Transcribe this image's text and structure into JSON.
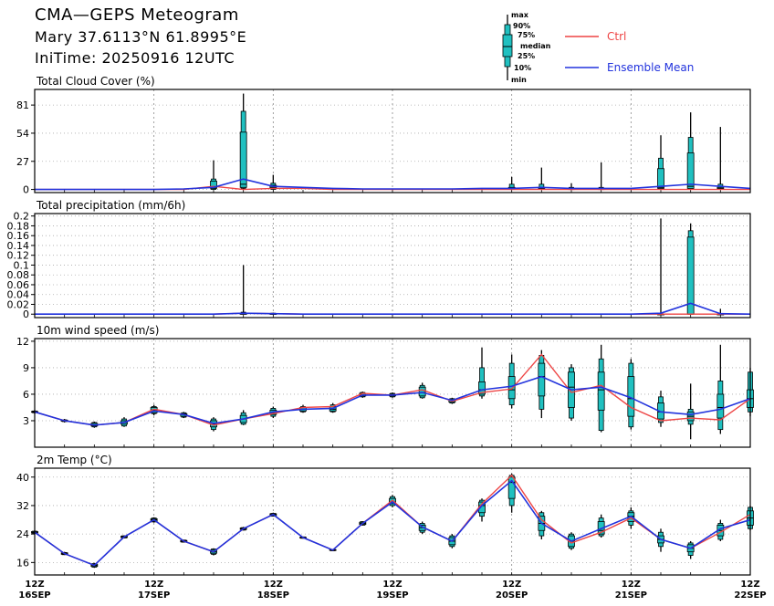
{
  "header": {
    "title": "CMA—GEPS Meteogram",
    "location": "Mary 37.6113°N 61.8995°E",
    "init_time": "IniTime: 20250916 12UTC"
  },
  "legend": {
    "ctrl_label": "Ctrl",
    "mean_label": "Ensemble Mean",
    "ctrl_color": "#ee4444",
    "mean_color": "#2233dd",
    "box_color": "#20c0c0",
    "box_key": [
      "max",
      "90%",
      "75%",
      "median",
      "25%",
      "10%",
      "min"
    ]
  },
  "chart_data": [
    {
      "type": "box",
      "title": "Total Cloud Cover (%)",
      "ylim": [
        -3,
        96
      ],
      "yticks": [
        0,
        27,
        54,
        81
      ],
      "x_hours": [
        0,
        6,
        12,
        18,
        24,
        30,
        36,
        42,
        48,
        54,
        60,
        66,
        72,
        78,
        84,
        90,
        96,
        102,
        108,
        114,
        120,
        126,
        132,
        138,
        144
      ],
      "ctrl": [
        0,
        0,
        0,
        0,
        0,
        0,
        3,
        0,
        1,
        1,
        0,
        0,
        0,
        0,
        0,
        0,
        0,
        0,
        0,
        0,
        0,
        0,
        0,
        0,
        0
      ],
      "mean": [
        0,
        0,
        0,
        0,
        0,
        0.5,
        2,
        10,
        3,
        2,
        1,
        0.5,
        0.5,
        0.5,
        0.5,
        1,
        1,
        2,
        1,
        1,
        1,
        3,
        5,
        3,
        1
      ],
      "boxes": [
        {
          "x": 36,
          "min": 0,
          "p10": 0,
          "p25": 1,
          "median": 2,
          "p75": 8,
          "p90": 10,
          "max": 28
        },
        {
          "x": 42,
          "min": 0,
          "p10": 1,
          "p25": 2,
          "median": 5,
          "p75": 55,
          "p90": 75,
          "max": 92
        },
        {
          "x": 48,
          "min": 0,
          "p10": 0,
          "p25": 1,
          "median": 2,
          "p75": 4,
          "p90": 6,
          "max": 14
        },
        {
          "x": 96,
          "min": 0,
          "p10": 0,
          "p25": 0,
          "median": 1,
          "p75": 2,
          "p90": 5,
          "max": 12
        },
        {
          "x": 102,
          "min": 0,
          "p10": 0,
          "p25": 1,
          "median": 1,
          "p75": 2,
          "p90": 5,
          "max": 21
        },
        {
          "x": 108,
          "min": 0,
          "p10": 0,
          "p25": 0,
          "median": 0,
          "p75": 1,
          "p90": 2,
          "max": 6
        },
        {
          "x": 114,
          "min": 0,
          "p10": 0,
          "p25": 0,
          "median": 0,
          "p75": 1,
          "p90": 2,
          "max": 26
        },
        {
          "x": 126,
          "min": 0,
          "p10": 0,
          "p25": 1,
          "median": 2,
          "p75": 20,
          "p90": 30,
          "max": 52
        },
        {
          "x": 132,
          "min": 0,
          "p10": 0,
          "p25": 1,
          "median": 3,
          "p75": 35,
          "p90": 50,
          "max": 74
        },
        {
          "x": 138,
          "min": 0,
          "p10": 0,
          "p25": 0,
          "median": 1,
          "p75": 2,
          "p90": 5,
          "max": 60
        }
      ]
    },
    {
      "type": "box",
      "title": "Total precipitation (mm/6h)",
      "ylim": [
        -0.007,
        0.205
      ],
      "yticks": [
        0,
        0.02,
        0.04,
        0.06,
        0.08,
        0.1,
        0.12,
        0.14,
        0.16,
        0.18,
        0.2
      ],
      "x_hours": [
        0,
        6,
        12,
        18,
        24,
        30,
        36,
        42,
        48,
        54,
        60,
        66,
        72,
        78,
        84,
        90,
        96,
        102,
        108,
        114,
        120,
        126,
        132,
        138,
        144
      ],
      "ctrl": [
        0,
        0,
        0,
        0,
        0,
        0,
        0,
        0.002,
        0.001,
        0,
        0,
        0,
        0,
        0,
        0,
        0,
        0,
        0,
        0,
        0,
        0,
        0,
        0,
        0,
        0
      ],
      "mean": [
        0,
        0,
        0,
        0,
        0,
        0,
        0,
        0.002,
        0.001,
        0,
        0,
        0,
        0,
        0,
        0,
        0,
        0,
        0,
        0,
        0,
        0,
        0.002,
        0.022,
        0.001,
        0
      ],
      "boxes": [
        {
          "x": 42,
          "min": 0,
          "p10": 0,
          "p25": 0,
          "median": 0,
          "p75": 0.002,
          "p90": 0.004,
          "max": 0.1
        },
        {
          "x": 48,
          "min": 0,
          "p10": 0,
          "p25": 0,
          "median": 0,
          "p75": 0.001,
          "p90": 0.002,
          "max": 0.003
        },
        {
          "x": 126,
          "min": 0,
          "p10": 0,
          "p25": 0,
          "median": 0,
          "p75": 0,
          "p90": 0.001,
          "max": 0.195
        },
        {
          "x": 132,
          "min": 0,
          "p10": 0,
          "p25": 0,
          "median": 0,
          "p75": 0.157,
          "p90": 0.17,
          "max": 0.185
        },
        {
          "x": 138,
          "min": 0,
          "p10": 0,
          "p25": 0,
          "median": 0,
          "p75": 0,
          "p90": 0.001,
          "max": 0.011
        }
      ]
    },
    {
      "type": "box",
      "title": "10m wind speed (m/s)",
      "ylim": [
        0,
        12.3
      ],
      "yticks": [
        3,
        6,
        9,
        12
      ],
      "x_hours": [
        0,
        6,
        12,
        18,
        24,
        30,
        36,
        42,
        48,
        54,
        60,
        66,
        72,
        78,
        84,
        90,
        96,
        102,
        108,
        114,
        120,
        126,
        132,
        138,
        144
      ],
      "ctrl": [
        4.0,
        3.0,
        2.5,
        2.8,
        4.3,
        3.7,
        2.5,
        3.2,
        3.8,
        4.5,
        4.6,
        6.1,
        5.9,
        6.5,
        5.2,
        6.2,
        6.6,
        10.5,
        6.2,
        7.0,
        4.5,
        3.0,
        3.3,
        3.1,
        5.5
      ],
      "mean": [
        4.0,
        3.0,
        2.5,
        2.8,
        4.1,
        3.7,
        2.7,
        3.2,
        4.0,
        4.3,
        4.4,
        5.9,
        5.9,
        6.2,
        5.3,
        6.5,
        6.9,
        8.0,
        6.5,
        6.8,
        5.6,
        4.0,
        3.7,
        4.3,
        5.5
      ],
      "boxes": [
        {
          "x": 0,
          "min": 3.8,
          "p10": 3.9,
          "p25": 3.95,
          "median": 4.0,
          "p75": 4.05,
          "p90": 4.1,
          "max": 4.2
        },
        {
          "x": 6,
          "min": 2.8,
          "p10": 2.9,
          "p25": 2.95,
          "median": 3.0,
          "p75": 3.05,
          "p90": 3.1,
          "max": 3.2
        },
        {
          "x": 12,
          "min": 2.2,
          "p10": 2.3,
          "p25": 2.4,
          "median": 2.5,
          "p75": 2.7,
          "p90": 2.8,
          "max": 2.9
        },
        {
          "x": 18,
          "min": 2.3,
          "p10": 2.4,
          "p25": 2.6,
          "median": 2.8,
          "p75": 3.0,
          "p90": 3.2,
          "max": 3.4
        },
        {
          "x": 24,
          "min": 3.6,
          "p10": 3.8,
          "p25": 3.9,
          "median": 4.2,
          "p75": 4.5,
          "p90": 4.6,
          "max": 4.8
        },
        {
          "x": 30,
          "min": 3.3,
          "p10": 3.4,
          "p25": 3.5,
          "median": 3.7,
          "p75": 3.8,
          "p90": 3.9,
          "max": 4.0
        },
        {
          "x": 36,
          "min": 1.8,
          "p10": 2.0,
          "p25": 2.3,
          "median": 2.6,
          "p75": 3.0,
          "p90": 3.2,
          "max": 3.4
        },
        {
          "x": 42,
          "min": 2.5,
          "p10": 2.6,
          "p25": 2.8,
          "median": 3.2,
          "p75": 3.6,
          "p90": 3.9,
          "max": 4.2
        },
        {
          "x": 48,
          "min": 3.3,
          "p10": 3.5,
          "p25": 3.7,
          "median": 3.9,
          "p75": 4.2,
          "p90": 4.4,
          "max": 4.6
        },
        {
          "x": 54,
          "min": 3.9,
          "p10": 4.0,
          "p25": 4.1,
          "median": 4.3,
          "p75": 4.5,
          "p90": 4.6,
          "max": 4.8
        },
        {
          "x": 60,
          "min": 3.9,
          "p10": 4.0,
          "p25": 4.1,
          "median": 4.3,
          "p75": 4.6,
          "p90": 4.8,
          "max": 5.0
        },
        {
          "x": 66,
          "min": 5.6,
          "p10": 5.7,
          "p25": 5.8,
          "median": 5.9,
          "p75": 6.1,
          "p90": 6.2,
          "max": 6.3
        },
        {
          "x": 72,
          "min": 5.6,
          "p10": 5.7,
          "p25": 5.8,
          "median": 5.9,
          "p75": 6.0,
          "p90": 6.1,
          "max": 6.2
        },
        {
          "x": 78,
          "min": 5.5,
          "p10": 5.6,
          "p25": 5.8,
          "median": 6.2,
          "p75": 6.8,
          "p90": 7.0,
          "max": 7.3
        },
        {
          "x": 84,
          "min": 4.9,
          "p10": 5.0,
          "p25": 5.1,
          "median": 5.3,
          "p75": 5.4,
          "p90": 5.5,
          "max": 5.6
        },
        {
          "x": 90,
          "min": 5.5,
          "p10": 5.8,
          "p25": 6.0,
          "median": 6.5,
          "p75": 7.4,
          "p90": 9.0,
          "max": 11.3
        },
        {
          "x": 96,
          "min": 4.4,
          "p10": 4.8,
          "p25": 5.5,
          "median": 6.5,
          "p75": 8.0,
          "p90": 9.5,
          "max": 10.5
        },
        {
          "x": 102,
          "min": 3.3,
          "p10": 4.3,
          "p25": 5.8,
          "median": 8.0,
          "p75": 9.5,
          "p90": 10.4,
          "max": 11.0
        },
        {
          "x": 108,
          "min": 3.0,
          "p10": 3.3,
          "p25": 4.5,
          "median": 6.8,
          "p75": 8.5,
          "p90": 9.0,
          "max": 9.4
        },
        {
          "x": 114,
          "min": 1.7,
          "p10": 1.9,
          "p25": 4.2,
          "median": 6.5,
          "p75": 8.5,
          "p90": 10.0,
          "max": 11.6
        },
        {
          "x": 120,
          "min": 2.0,
          "p10": 2.3,
          "p25": 3.5,
          "median": 5.5,
          "p75": 8.0,
          "p90": 9.5,
          "max": 10.0
        },
        {
          "x": 126,
          "min": 2.3,
          "p10": 2.8,
          "p25": 3.2,
          "median": 4.0,
          "p75": 5.0,
          "p90": 5.7,
          "max": 6.4
        },
        {
          "x": 132,
          "min": 0.9,
          "p10": 2.6,
          "p25": 3.0,
          "median": 3.5,
          "p75": 4.0,
          "p90": 4.3,
          "max": 7.2
        },
        {
          "x": 138,
          "min": 1.5,
          "p10": 2.0,
          "p25": 3.3,
          "median": 4.5,
          "p75": 6.0,
          "p90": 7.5,
          "max": 11.6
        },
        {
          "x": 144,
          "min": 3.5,
          "p10": 4.0,
          "p25": 4.5,
          "median": 5.5,
          "p75": 6.5,
          "p90": 8.5,
          "max": 9.0
        }
      ]
    },
    {
      "type": "box",
      "title": "2m Temp (°C)",
      "ylim": [
        12.5,
        42.5
      ],
      "yticks": [
        16,
        24,
        32,
        40
      ],
      "x_hours": [
        0,
        6,
        12,
        18,
        24,
        30,
        36,
        42,
        48,
        54,
        60,
        66,
        72,
        78,
        84,
        90,
        96,
        102,
        108,
        114,
        120,
        126,
        132,
        138,
        144
      ],
      "xticks": [
        {
          "hour": 0,
          "top": "12Z",
          "bottom": "16SEP"
        },
        {
          "hour": 24,
          "top": "12Z",
          "bottom": "17SEP"
        },
        {
          "hour": 48,
          "top": "12Z",
          "bottom": "18SEP"
        },
        {
          "hour": 72,
          "top": "12Z",
          "bottom": "19SEP"
        },
        {
          "hour": 96,
          "top": "12Z",
          "bottom": "20SEP"
        },
        {
          "hour": 120,
          "top": "12Z",
          "bottom": "21SEP"
        },
        {
          "hour": 144,
          "top": "12Z",
          "bottom": "22SEP"
        }
      ],
      "ctrl": [
        24.5,
        18.5,
        15.2,
        23.2,
        28.0,
        22.0,
        19.0,
        25.5,
        29.5,
        23.0,
        19.5,
        27.0,
        33.5,
        26.0,
        22.0,
        32.5,
        40.5,
        28.0,
        21.5,
        24.5,
        28.5,
        22.5,
        20.0,
        24.5,
        29.5
      ],
      "mean": [
        24.5,
        18.5,
        15.2,
        23.2,
        28.0,
        22.0,
        19.0,
        25.5,
        29.5,
        23.0,
        19.5,
        27.0,
        33.0,
        26.0,
        22.0,
        32.0,
        39.0,
        27.0,
        22.0,
        25.5,
        29.0,
        22.5,
        20.0,
        25.5,
        28.0
      ],
      "boxes": [
        {
          "x": 0,
          "min": 24.1,
          "p10": 24.2,
          "p25": 24.3,
          "median": 24.5,
          "p75": 24.7,
          "p90": 24.8,
          "max": 25.0
        },
        {
          "x": 6,
          "min": 18.1,
          "p10": 18.2,
          "p25": 18.3,
          "median": 18.5,
          "p75": 18.7,
          "p90": 18.8,
          "max": 19.0
        },
        {
          "x": 12,
          "min": 14.5,
          "p10": 14.7,
          "p25": 14.9,
          "median": 15.2,
          "p75": 15.5,
          "p90": 15.7,
          "max": 15.9
        },
        {
          "x": 18,
          "min": 22.8,
          "p10": 22.9,
          "p25": 23.0,
          "median": 23.2,
          "p75": 23.4,
          "p90": 23.5,
          "max": 23.6
        },
        {
          "x": 24,
          "min": 27.2,
          "p10": 27.4,
          "p25": 27.6,
          "median": 28.0,
          "p75": 28.3,
          "p90": 28.5,
          "max": 28.7
        },
        {
          "x": 30,
          "min": 21.6,
          "p10": 21.7,
          "p25": 21.8,
          "median": 22.0,
          "p75": 22.2,
          "p90": 22.3,
          "max": 22.4
        },
        {
          "x": 36,
          "min": 18.0,
          "p10": 18.3,
          "p25": 18.6,
          "median": 19.0,
          "p75": 19.5,
          "p90": 19.8,
          "max": 20.0
        },
        {
          "x": 42,
          "min": 25.0,
          "p10": 25.1,
          "p25": 25.3,
          "median": 25.5,
          "p75": 25.7,
          "p90": 25.8,
          "max": 26.0
        },
        {
          "x": 48,
          "min": 28.9,
          "p10": 29.0,
          "p25": 29.2,
          "median": 29.5,
          "p75": 29.7,
          "p90": 29.8,
          "max": 30.0
        },
        {
          "x": 54,
          "min": 22.7,
          "p10": 22.8,
          "p25": 22.9,
          "median": 23.0,
          "p75": 23.1,
          "p90": 23.2,
          "max": 23.3
        },
        {
          "x": 60,
          "min": 19.2,
          "p10": 19.3,
          "p25": 19.4,
          "median": 19.5,
          "p75": 19.6,
          "p90": 19.7,
          "max": 19.8
        },
        {
          "x": 66,
          "min": 26.4,
          "p10": 26.5,
          "p25": 26.7,
          "median": 27.0,
          "p75": 27.3,
          "p90": 27.5,
          "max": 27.6
        },
        {
          "x": 72,
          "min": 31.5,
          "p10": 32.0,
          "p25": 32.5,
          "median": 33.0,
          "p75": 34.0,
          "p90": 34.5,
          "max": 35.0
        },
        {
          "x": 78,
          "min": 24.0,
          "p10": 24.5,
          "p25": 25.0,
          "median": 25.8,
          "p75": 26.5,
          "p90": 27.0,
          "max": 27.5
        },
        {
          "x": 84,
          "min": 20.0,
          "p10": 20.5,
          "p25": 21.0,
          "median": 22.0,
          "p75": 23.0,
          "p90": 23.5,
          "max": 24.0
        },
        {
          "x": 90,
          "min": 27.5,
          "p10": 29.0,
          "p25": 30.0,
          "median": 32.0,
          "p75": 33.0,
          "p90": 33.5,
          "max": 34.0
        },
        {
          "x": 96,
          "min": 30.0,
          "p10": 32.0,
          "p25": 34.0,
          "median": 38.5,
          "p75": 40.0,
          "p90": 40.5,
          "max": 41.0
        },
        {
          "x": 102,
          "min": 22.5,
          "p10": 23.5,
          "p25": 25.0,
          "median": 27.0,
          "p75": 29.0,
          "p90": 30.0,
          "max": 30.5
        },
        {
          "x": 108,
          "min": 19.5,
          "p10": 20.0,
          "p25": 20.5,
          "median": 22.0,
          "p75": 23.5,
          "p90": 24.0,
          "max": 24.5
        },
        {
          "x": 114,
          "min": 23.0,
          "p10": 23.5,
          "p25": 24.0,
          "median": 25.0,
          "p75": 27.5,
          "p90": 28.5,
          "max": 29.5
        },
        {
          "x": 120,
          "min": 25.5,
          "p10": 26.5,
          "p25": 27.5,
          "median": 29.0,
          "p75": 30.0,
          "p90": 30.5,
          "max": 31.5
        },
        {
          "x": 126,
          "min": 19.0,
          "p10": 20.5,
          "p25": 21.5,
          "median": 22.5,
          "p75": 23.5,
          "p90": 24.5,
          "max": 25.5
        },
        {
          "x": 132,
          "min": 17.0,
          "p10": 18.0,
          "p25": 19.0,
          "median": 20.0,
          "p75": 21.0,
          "p90": 21.5,
          "max": 22.0
        },
        {
          "x": 138,
          "min": 22.0,
          "p10": 22.5,
          "p25": 23.5,
          "median": 25.0,
          "p75": 26.5,
          "p90": 27.0,
          "max": 28.0
        },
        {
          "x": 144,
          "min": 25.0,
          "p10": 25.5,
          "p25": 26.5,
          "median": 28.5,
          "p75": 30.5,
          "p90": 31.5,
          "max": 32.0
        }
      ]
    }
  ]
}
